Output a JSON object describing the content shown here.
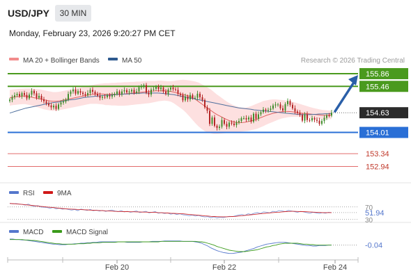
{
  "header": {
    "symbol": "USD/JPY",
    "timeframe": "30 MIN",
    "timestamp": "Monday, February 23, 2026 9:20:27 PM CET"
  },
  "legend": {
    "ma20": "MA 20 + Bollinger Bands",
    "ma50": "MA 50",
    "credit": "Research © 2026 Trading Central"
  },
  "rsi_legend": {
    "rsi": "RSI",
    "ma": "9MA"
  },
  "macd_legend": {
    "macd": "MACD",
    "signal": "MACD Signal"
  },
  "colors": {
    "resistance": "#4a9a1e",
    "support": "#2a6fd6",
    "target": "#e26b6b",
    "candle_up": "#3a8a25",
    "candle_down": "#b21f1f",
    "band": "#fcd6d6",
    "ma20": "#e06060",
    "ma50": "#4e6f9d",
    "arrow": "#2a5fa8",
    "price_tag": "#2b2b2b"
  },
  "chart_data": [
    {
      "type": "candlestick",
      "ylim": [
        152.6,
        156.1
      ],
      "x_ticks": [
        "Feb 20",
        "Feb 22",
        "Feb 24"
      ],
      "levels": [
        {
          "value": 155.86,
          "label": "155.86",
          "kind": "resistance"
        },
        {
          "value": 155.46,
          "label": "155.46",
          "kind": "resistance"
        },
        {
          "value": 154.63,
          "label": "154.63",
          "kind": "current"
        },
        {
          "value": 154.01,
          "label": "154.01",
          "kind": "support"
        },
        {
          "value": 153.34,
          "label": "153.34",
          "kind": "target"
        },
        {
          "value": 152.94,
          "label": "152.94",
          "kind": "target"
        }
      ],
      "close": [
        155.04,
        155.12,
        155.18,
        155.22,
        155.15,
        155.25,
        155.19,
        155.08,
        155.2,
        155.32,
        155.24,
        155.1,
        155.16,
        155.05,
        154.99,
        154.92,
        154.86,
        154.8,
        154.85,
        154.75,
        154.89,
        154.95,
        154.98,
        155.04,
        155.22,
        155.3,
        155.36,
        155.23,
        155.31,
        155.26,
        155.22,
        155.18,
        155.25,
        155.35,
        155.29,
        155.22,
        155.17,
        155.1,
        155.13,
        155.12,
        155.18,
        155.14,
        155.18,
        155.22,
        155.3,
        155.21,
        155.3,
        155.34,
        155.27,
        155.3,
        155.35,
        155.26,
        155.3,
        155.43,
        155.45,
        155.5,
        155.26,
        155.2,
        155.36,
        155.38,
        155.45,
        155.37,
        155.42,
        155.3,
        155.22,
        155.36,
        155.42,
        155.37,
        155.35,
        155.23,
        155.19,
        155.02,
        155.14,
        155.05,
        155.19,
        155.1,
        155.1,
        155.23,
        155.12,
        155.03,
        154.8,
        154.69,
        154.28,
        154.48,
        154.22,
        154.15,
        154.19,
        154.4,
        154.28,
        154.19,
        154.32,
        154.29,
        154.24,
        154.33,
        154.37,
        154.46,
        154.46,
        154.42,
        154.48,
        154.35,
        154.6,
        154.44,
        154.58,
        154.65,
        154.73,
        154.7,
        154.72,
        154.76,
        154.86,
        154.89,
        154.89,
        154.77,
        154.7,
        154.9,
        155.0,
        154.88,
        154.77,
        154.67,
        154.63,
        154.56,
        154.38,
        154.58,
        154.4,
        154.39,
        154.46,
        154.41,
        154.38,
        154.28,
        154.37,
        154.47,
        154.55,
        154.54,
        154.63
      ],
      "series": [
        {
          "name": "MA 20",
          "values": [
            155.1,
            155.12,
            155.13,
            155.14,
            155.15,
            155.16,
            155.14,
            155.12,
            155.1,
            155.08,
            155.06,
            155.04,
            155.02,
            155.0,
            154.99,
            154.99,
            155.0,
            155.02,
            155.04,
            155.06,
            155.08,
            155.1,
            155.12,
            155.14,
            155.16,
            155.18,
            155.2,
            155.21,
            155.22,
            155.22,
            155.22,
            155.21,
            155.21,
            155.21,
            155.21,
            155.21,
            155.21,
            155.22,
            155.23,
            155.24,
            155.25,
            155.26,
            155.27,
            155.28,
            155.29,
            155.3,
            155.31,
            155.32,
            155.32,
            155.32,
            155.32,
            155.31,
            155.3,
            155.28,
            155.25,
            155.22,
            155.2,
            155.18,
            155.15,
            155.11,
            155.05,
            154.98,
            154.91,
            154.84,
            154.77,
            154.7,
            154.63,
            154.57,
            154.52,
            154.47,
            154.42,
            154.38,
            154.35,
            154.33,
            154.32,
            154.32,
            154.33,
            154.35,
            154.37,
            154.4,
            154.43,
            154.47,
            154.51,
            154.55,
            154.58,
            154.61,
            154.63,
            154.65,
            154.66,
            154.67,
            154.67,
            154.66,
            154.65,
            154.63,
            154.62,
            154.61,
            154.6,
            154.59,
            154.58,
            154.57,
            154.56,
            154.55,
            154.55,
            154.55,
            154.56
          ]
        },
        {
          "name": "MA 50",
          "values": [
            154.62,
            154.65,
            154.68,
            154.71,
            154.74,
            154.77,
            154.79,
            154.81,
            154.83,
            154.85,
            154.87,
            154.89,
            154.91,
            154.93,
            154.95,
            154.96,
            154.97,
            154.99,
            155.01,
            155.03,
            155.04,
            155.05,
            155.07,
            155.09,
            155.11,
            155.12,
            155.13,
            155.14,
            155.15,
            155.16,
            155.17,
            155.18,
            155.18,
            155.19,
            155.2,
            155.21,
            155.21,
            155.22,
            155.22,
            155.23,
            155.23,
            155.24,
            155.24,
            155.25,
            155.25,
            155.25,
            155.25,
            155.25,
            155.25,
            155.24,
            155.23,
            155.22,
            155.21,
            155.2,
            155.18,
            155.16,
            155.14,
            155.12,
            155.1,
            155.08,
            155.06,
            155.04,
            155.02,
            155.0,
            154.98,
            154.96,
            154.94,
            154.92,
            154.9,
            154.88,
            154.86,
            154.84,
            154.82,
            154.8,
            154.78,
            154.77,
            154.76,
            154.75,
            154.74,
            154.72,
            154.71,
            154.7,
            154.69,
            154.68,
            154.67,
            154.66,
            154.65,
            154.64,
            154.63,
            154.62,
            154.61,
            154.6,
            154.59,
            154.58,
            154.57,
            154.57,
            154.57,
            154.57,
            154.58,
            154.58,
            154.59,
            154.59,
            154.6,
            154.6,
            154.61
          ]
        }
      ],
      "bands": {
        "upper": [
          155.35,
          155.36,
          155.37,
          155.38,
          155.38,
          155.39,
          155.39,
          155.39,
          155.38,
          155.37,
          155.36,
          155.34,
          155.32,
          155.3,
          155.28,
          155.28,
          155.29,
          155.31,
          155.33,
          155.35,
          155.37,
          155.39,
          155.41,
          155.43,
          155.45,
          155.47,
          155.49,
          155.51,
          155.53,
          155.54,
          155.55,
          155.56,
          155.56,
          155.57,
          155.57,
          155.58,
          155.58,
          155.59,
          155.59,
          155.6,
          155.6,
          155.61,
          155.61,
          155.62,
          155.63,
          155.63,
          155.63,
          155.63,
          155.64,
          155.64,
          155.63,
          155.62,
          155.62,
          155.63,
          155.65,
          155.66,
          155.67,
          155.66,
          155.65,
          155.63,
          155.61,
          155.58,
          155.53,
          155.48,
          155.42,
          155.36,
          155.28,
          155.2,
          155.13,
          155.06,
          154.99,
          154.93,
          154.88,
          154.84,
          154.81,
          154.79,
          154.79,
          154.81,
          154.84,
          154.88,
          154.92,
          154.96,
          155.0,
          155.02,
          155.04,
          155.05,
          155.05,
          155.04,
          155.03,
          155.02,
          155.0,
          154.98,
          154.96,
          154.93,
          154.9,
          154.87,
          154.84,
          154.81,
          154.78,
          154.76,
          154.74,
          154.72,
          154.71,
          154.7,
          154.7
        ],
        "lower": [
          154.85,
          154.87,
          154.88,
          154.89,
          154.9,
          154.9,
          154.88,
          154.86,
          154.83,
          154.8,
          154.77,
          154.74,
          154.72,
          154.7,
          154.69,
          154.7,
          154.71,
          154.73,
          154.75,
          154.77,
          154.79,
          154.81,
          154.83,
          154.85,
          154.87,
          154.89,
          154.91,
          154.91,
          154.91,
          154.9,
          154.89,
          154.87,
          154.87,
          154.86,
          154.86,
          154.85,
          154.85,
          154.85,
          154.86,
          154.87,
          154.88,
          154.89,
          154.9,
          154.91,
          154.92,
          154.93,
          154.95,
          154.97,
          154.99,
          155.0,
          155.01,
          155.0,
          154.98,
          154.93,
          154.86,
          154.79,
          154.72,
          154.63,
          154.52,
          154.41,
          154.3,
          154.2,
          154.12,
          154.05,
          154.01,
          153.98,
          153.96,
          153.96,
          153.97,
          153.98,
          153.99,
          154.0,
          154.01,
          154.02,
          154.03,
          154.04,
          154.05,
          154.06,
          154.08,
          154.1,
          154.13,
          154.17,
          154.21,
          154.26,
          154.3,
          154.34,
          154.38,
          154.42,
          154.45,
          154.47,
          154.49,
          154.5,
          154.5,
          154.5,
          154.49,
          154.48,
          154.47,
          154.46,
          154.45,
          154.44,
          154.43,
          154.42,
          154.42,
          154.42,
          154.43
        ]
      }
    },
    {
      "type": "line",
      "name": "RSI",
      "ylim": [
        25,
        85
      ],
      "y_ticks": [
        30,
        70
      ],
      "current": 51.94,
      "current_label": "51.94",
      "series": [
        {
          "name": "RSI",
          "values": [
            82,
            80,
            81,
            79,
            78,
            76,
            79,
            74,
            72,
            74,
            70,
            69,
            68,
            66,
            68,
            64,
            66,
            63,
            64,
            62,
            60,
            62,
            58,
            63,
            61,
            59,
            62,
            58,
            60,
            57,
            59,
            56,
            58,
            60,
            57,
            55,
            58,
            54,
            56,
            53,
            55,
            57,
            52,
            54,
            56,
            51,
            53,
            55,
            50,
            52,
            49,
            51,
            47,
            49,
            46,
            48,
            45,
            44,
            42,
            44,
            41,
            43,
            40,
            38,
            39,
            36,
            38,
            35,
            37,
            36,
            38,
            40,
            39,
            42,
            44,
            46,
            43,
            48,
            46,
            50,
            52,
            49,
            54,
            53,
            51,
            56,
            54,
            58,
            57,
            55,
            59,
            57,
            55,
            53,
            56,
            54,
            52,
            50,
            53,
            51,
            49,
            52,
            50,
            53,
            52
          ]
        },
        {
          "name": "9MA",
          "values": [
            81,
            80.5,
            80,
            79,
            78,
            77,
            76,
            75,
            74,
            73,
            72,
            71,
            70,
            69,
            68,
            67,
            66,
            65,
            64,
            63.5,
            63,
            62.5,
            62,
            61.5,
            61,
            60.5,
            60,
            59.5,
            59,
            58.5,
            58,
            57.5,
            57,
            56.5,
            56,
            55.5,
            55.5,
            55,
            55,
            54.5,
            54.5,
            54,
            54,
            53.5,
            53.5,
            53,
            53,
            52.5,
            52,
            51.5,
            51,
            50.5,
            50,
            49.5,
            49,
            48.5,
            48,
            47,
            46,
            45,
            44.5,
            43.5,
            42.5,
            41.5,
            41,
            40,
            39.5,
            39,
            38.5,
            38.5,
            38.5,
            39,
            39.5,
            40,
            41,
            42,
            43,
            44,
            45,
            46,
            47,
            48,
            49,
            50,
            51,
            52,
            52.5,
            53,
            54,
            55,
            55.5,
            56,
            56,
            55.5,
            55,
            55,
            54.5,
            54,
            53.5,
            53,
            52.5,
            52,
            52,
            52,
            52
          ]
        }
      ]
    },
    {
      "type": "line",
      "name": "MACD",
      "ylim": [
        -0.3,
        0.12
      ],
      "current": -0.04,
      "current_label": "-0.04",
      "series": [
        {
          "name": "MACD",
          "values": [
            0.09,
            0.09,
            0.08,
            0.08,
            0.07,
            0.07,
            0.06,
            0.05,
            0.04,
            0.03,
            0.02,
            0.01,
            0.0,
            -0.01,
            -0.02,
            -0.02,
            -0.03,
            -0.03,
            -0.03,
            -0.02,
            -0.02,
            -0.01,
            -0.01,
            0.0,
            0.0,
            0.01,
            0.01,
            0.02,
            0.02,
            0.03,
            0.03,
            0.03,
            0.03,
            0.03,
            0.03,
            0.03,
            0.03,
            0.03,
            0.02,
            0.02,
            0.02,
            0.02,
            0.02,
            0.03,
            0.03,
            0.03,
            0.04,
            0.04,
            0.04,
            0.04,
            0.05,
            0.05,
            0.05,
            0.05,
            0.05,
            0.05,
            0.04,
            0.04,
            0.04,
            0.04,
            0.03,
            0.02,
            0.0,
            -0.03,
            -0.06,
            -0.1,
            -0.13,
            -0.16,
            -0.18,
            -0.2,
            -0.21,
            -0.22,
            -0.22,
            -0.21,
            -0.2,
            -0.19,
            -0.17,
            -0.15,
            -0.13,
            -0.11,
            -0.08,
            -0.06,
            -0.04,
            -0.02,
            -0.01,
            0.0,
            0.01,
            0.02,
            0.02,
            0.02,
            0.01,
            0.0,
            -0.01,
            -0.02,
            -0.03,
            -0.04,
            -0.05,
            -0.05,
            -0.06,
            -0.06,
            -0.05,
            -0.05,
            -0.05,
            -0.04,
            -0.04
          ]
        },
        {
          "name": "MACD Signal",
          "values": [
            0.08,
            0.08,
            0.08,
            0.08,
            0.08,
            0.07,
            0.07,
            0.06,
            0.06,
            0.05,
            0.04,
            0.03,
            0.02,
            0.01,
            0.0,
            -0.01,
            -0.01,
            -0.02,
            -0.02,
            -0.02,
            -0.02,
            -0.02,
            -0.01,
            -0.01,
            -0.01,
            0.0,
            0.0,
            0.01,
            0.01,
            0.01,
            0.02,
            0.02,
            0.02,
            0.02,
            0.02,
            0.03,
            0.03,
            0.03,
            0.03,
            0.03,
            0.03,
            0.03,
            0.03,
            0.03,
            0.03,
            0.03,
            0.03,
            0.03,
            0.03,
            0.04,
            0.04,
            0.04,
            0.04,
            0.04,
            0.04,
            0.04,
            0.04,
            0.04,
            0.04,
            0.04,
            0.04,
            0.03,
            0.03,
            0.02,
            0.0,
            -0.02,
            -0.04,
            -0.07,
            -0.09,
            -0.11,
            -0.13,
            -0.15,
            -0.16,
            -0.17,
            -0.18,
            -0.18,
            -0.18,
            -0.17,
            -0.16,
            -0.15,
            -0.14,
            -0.12,
            -0.1,
            -0.08,
            -0.07,
            -0.05,
            -0.04,
            -0.02,
            -0.01,
            0.0,
            0.0,
            0.0,
            0.0,
            0.0,
            -0.01,
            -0.02,
            -0.02,
            -0.03,
            -0.03,
            -0.04,
            -0.04,
            -0.04,
            -0.04,
            -0.04,
            -0.04
          ]
        }
      ]
    }
  ]
}
